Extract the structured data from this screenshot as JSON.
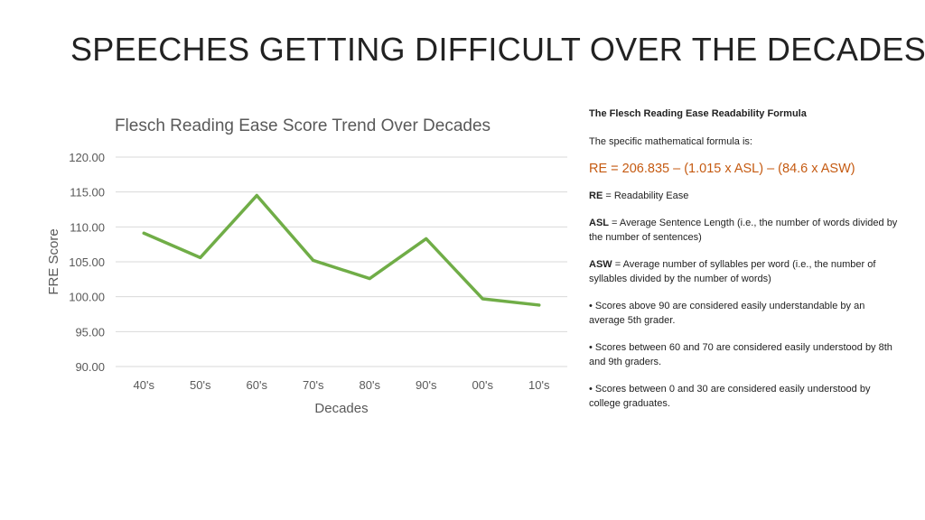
{
  "slide": {
    "title": "SPEECHES GETTING DIFFICULT OVER THE DECADES"
  },
  "chart_data": {
    "type": "line",
    "title": "Flesch Reading Ease Score Trend Over Decades",
    "xlabel": "Decades",
    "ylabel": "FRE Score",
    "categories": [
      "40's",
      "50's",
      "60's",
      "70's",
      "80's",
      "90's",
      "00's",
      "10's"
    ],
    "series": [
      {
        "name": "FRE Score",
        "values": [
          109.1,
          105.6,
          114.5,
          105.2,
          102.6,
          108.3,
          99.7,
          98.8
        ]
      }
    ],
    "ylim": [
      90,
      120
    ],
    "yticks": [
      "90.00",
      "95.00",
      "100.00",
      "105.00",
      "110.00",
      "115.00",
      "120.00"
    ],
    "grid": true,
    "color": "#70ad47"
  },
  "panel": {
    "heading": "The Flesch Reading Ease Readability Formula",
    "intro": "The specific mathematical formula is:",
    "formula": "RE = 206.835 – (1.015 x ASL) – (84.6 x ASW)",
    "formula_color": "#c55a11",
    "definitions": [
      {
        "term": "RE",
        "text": " = Readability Ease"
      },
      {
        "term": "ASL",
        "text": " = Average Sentence Length (i.e., the number of words divided by the number of sentences)"
      },
      {
        "term": "ASW",
        "text": " = Average number of syllables per word (i.e., the number of syllables divided by the number of words)"
      }
    ],
    "bullets": [
      "• Scores above 90 are considered easily understandable by an average 5th grader.",
      "• Scores between 60 and 70 are considered easily understood by 8th and 9th graders.",
      "• Scores between 0 and 30 are considered easily understood by college graduates."
    ]
  }
}
